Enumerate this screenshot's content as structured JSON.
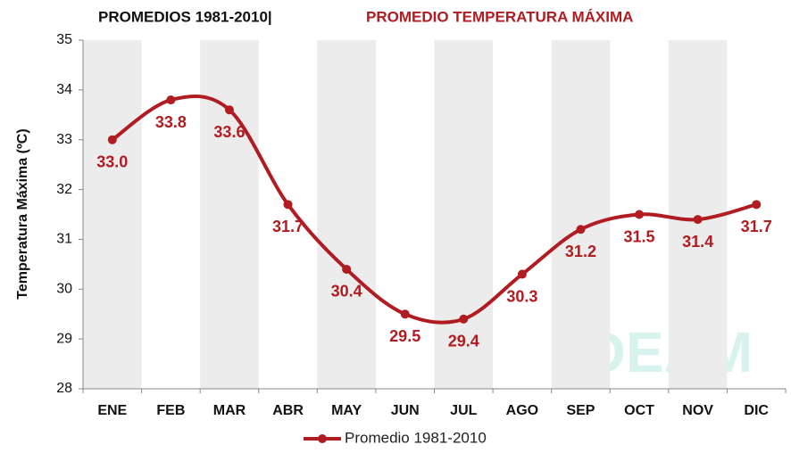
{
  "chart_data": {
    "type": "line",
    "title": "PROMEDIOS 1981-2010|",
    "subtitle": "PROMEDIO TEMPERATURA MÁXIMA",
    "y_label": "Temperatura Máxima (ºC)",
    "watermark": "IDEAM",
    "categories": [
      "ENE",
      "FEB",
      "MAR",
      "ABR",
      "MAY",
      "JUN",
      "JUL",
      "AGO",
      "SEP",
      "OCT",
      "NOV",
      "DIC"
    ],
    "series": [
      {
        "name": "Promedio 1981-2010",
        "color": "#b01c22",
        "values": [
          33.0,
          33.8,
          33.6,
          31.7,
          30.4,
          29.5,
          29.4,
          30.3,
          31.2,
          31.5,
          31.4,
          31.7
        ],
        "value_labels": [
          "33.0",
          "33.8",
          "33.6",
          "31.7",
          "30.4",
          "29.5",
          "29.4",
          "30.3",
          "31.2",
          "31.5",
          "31.4",
          "31.7"
        ]
      }
    ],
    "ylim": [
      28,
      35
    ],
    "yticks": [
      28,
      29,
      30,
      31,
      32,
      33,
      34,
      35
    ],
    "grid": false,
    "legend": "bottom"
  }
}
